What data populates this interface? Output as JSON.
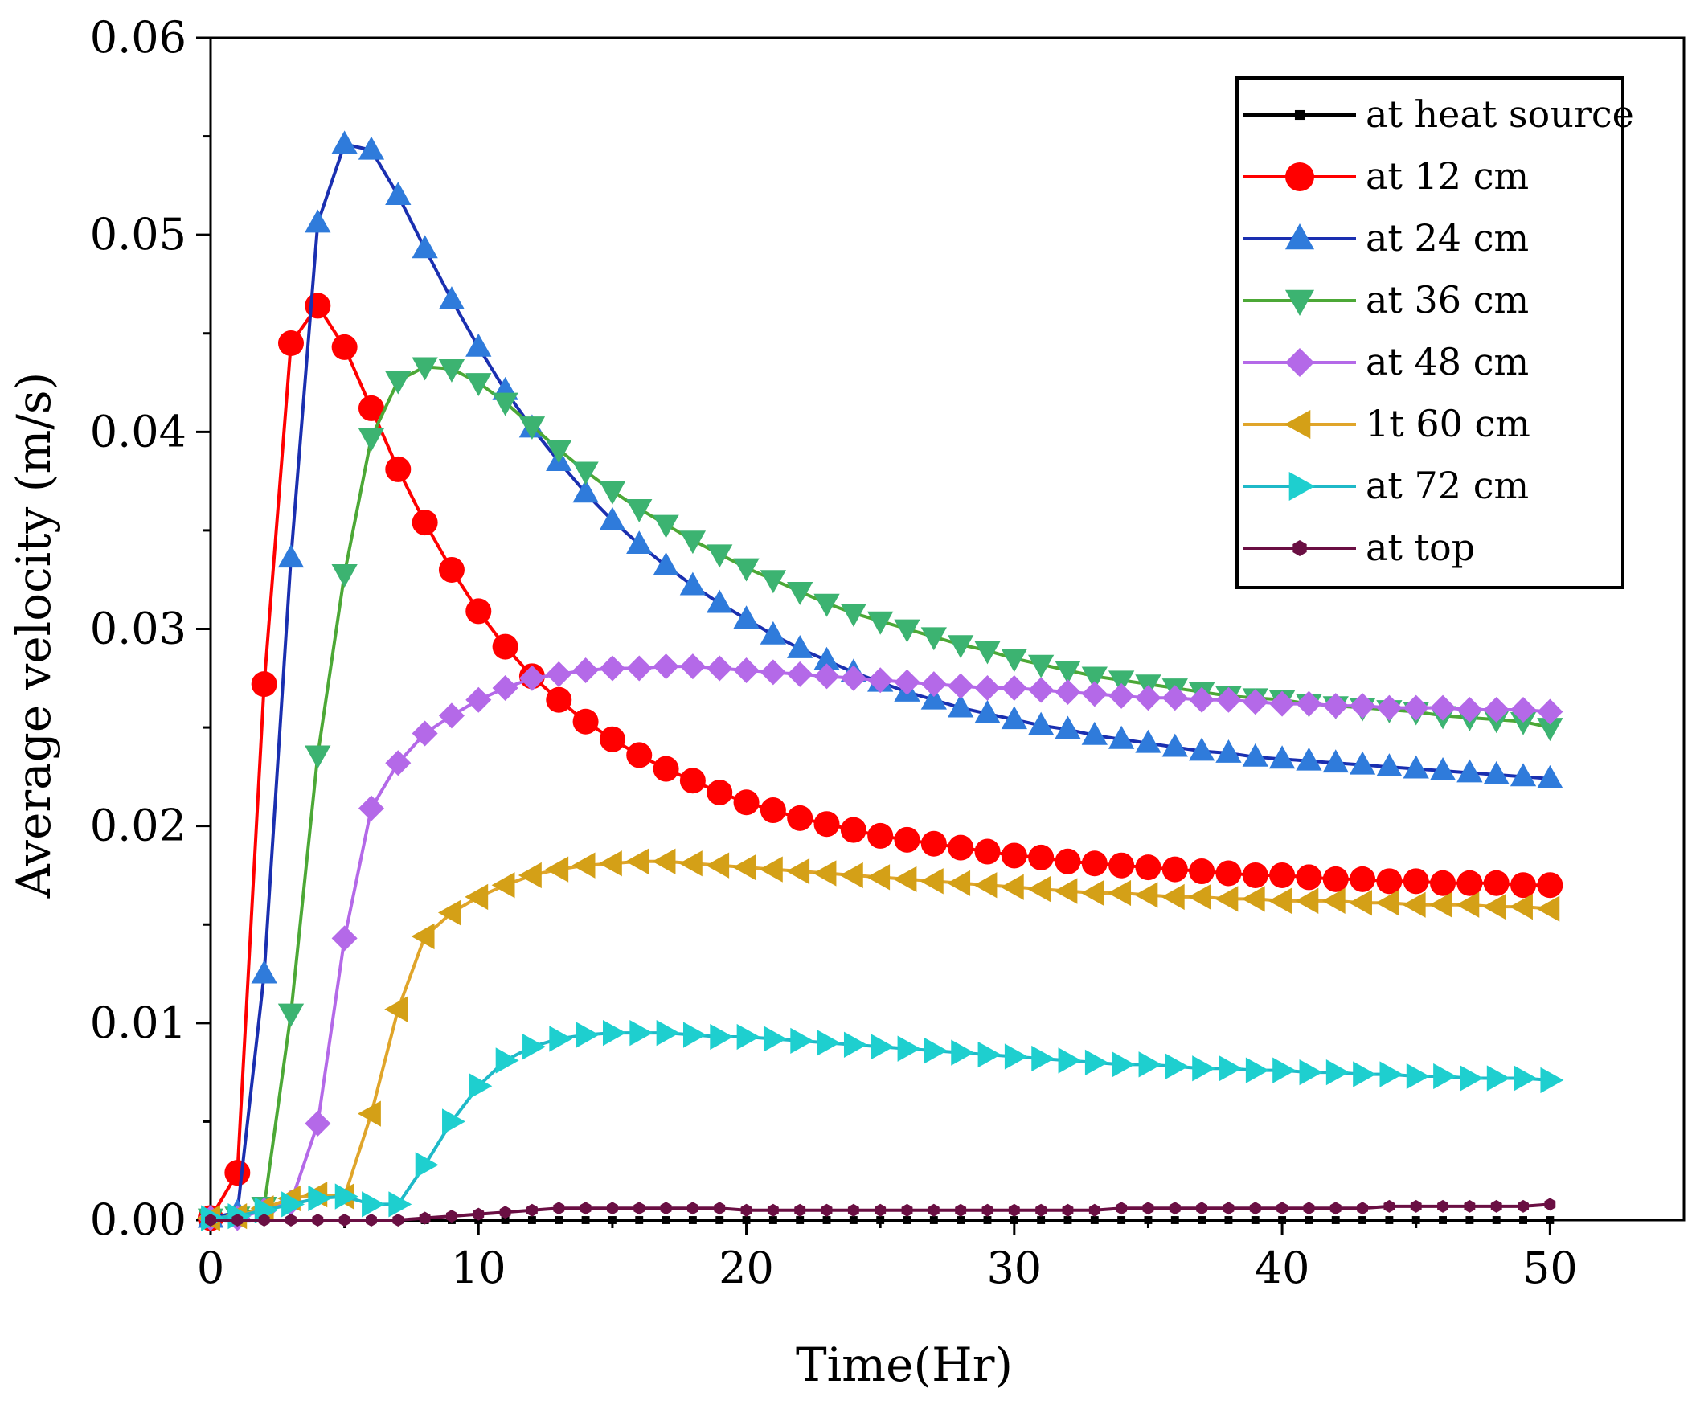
{
  "chart_data": {
    "type": "line",
    "title": "",
    "xlabel": "Time(Hr)",
    "ylabel": "Average velocity (m/s)",
    "xlim": [
      0,
      55
    ],
    "ylim": [
      0,
      0.06
    ],
    "x_ticks": [
      0,
      10,
      20,
      30,
      40,
      50
    ],
    "x_tick_labels": [
      "0",
      "10",
      "20",
      "30",
      "40",
      "50"
    ],
    "y_ticks": [
      0,
      0.01,
      0.02,
      0.03,
      0.04,
      0.05,
      0.06
    ],
    "y_tick_labels": [
      "0.00",
      "0.01",
      "0.02",
      "0.03",
      "0.04",
      "0.05",
      "0.06"
    ],
    "legend_position": "top-right",
    "x": [
      0,
      1,
      2,
      3,
      4,
      5,
      6,
      7,
      8,
      9,
      10,
      11,
      12,
      13,
      14,
      15,
      16,
      17,
      18,
      19,
      20,
      21,
      22,
      23,
      24,
      25,
      26,
      27,
      28,
      29,
      30,
      31,
      32,
      33,
      34,
      35,
      36,
      37,
      38,
      39,
      40,
      41,
      42,
      43,
      44,
      45,
      46,
      47,
      48,
      49,
      50
    ],
    "series": [
      {
        "name": "at heat source",
        "color": "#000000",
        "marker": "square",
        "values": [
          0.0,
          0.0,
          0.0,
          0.0,
          0.0,
          0.0,
          0.0,
          0.0,
          0.0,
          0.0,
          0.0,
          0.0,
          0.0,
          0.0,
          0.0,
          0.0,
          0.0,
          0.0,
          0.0,
          0.0,
          0.0,
          0.0,
          0.0,
          0.0,
          0.0,
          0.0,
          0.0,
          0.0,
          0.0,
          0.0,
          0.0,
          0.0,
          0.0,
          0.0,
          0.0,
          0.0,
          0.0,
          0.0,
          0.0,
          0.0,
          0.0,
          0.0,
          0.0,
          0.0,
          0.0,
          0.0,
          0.0,
          0.0,
          0.0,
          0.0,
          0.0
        ]
      },
      {
        "name": "at 12 cm",
        "color": "#FF0000",
        "marker": "circle",
        "values": [
          0.0001,
          0.0024,
          0.0272,
          0.0445,
          0.0464,
          0.0443,
          0.0412,
          0.0381,
          0.0354,
          0.033,
          0.0309,
          0.0291,
          0.0276,
          0.0264,
          0.0253,
          0.0244,
          0.0236,
          0.0229,
          0.0223,
          0.0217,
          0.0212,
          0.0208,
          0.0204,
          0.0201,
          0.0198,
          0.0195,
          0.0193,
          0.0191,
          0.0189,
          0.0187,
          0.0185,
          0.0184,
          0.0182,
          0.0181,
          0.018,
          0.0179,
          0.0178,
          0.0177,
          0.0176,
          0.0175,
          0.0175,
          0.0174,
          0.0173,
          0.0173,
          0.0172,
          0.0172,
          0.0171,
          0.0171,
          0.0171,
          0.017,
          0.017
        ]
      },
      {
        "name": "at 24 cm",
        "color": "#2F7BDB",
        "line_color": "#1A2FB0",
        "marker": "triangle-up",
        "values": [
          0.0001,
          0.0004,
          0.0125,
          0.0336,
          0.0506,
          0.0546,
          0.0543,
          0.052,
          0.0493,
          0.0467,
          0.0443,
          0.0421,
          0.0402,
          0.0385,
          0.0369,
          0.0355,
          0.0343,
          0.0332,
          0.0322,
          0.0313,
          0.0305,
          0.0297,
          0.029,
          0.0284,
          0.0278,
          0.0273,
          0.0268,
          0.0264,
          0.026,
          0.0257,
          0.0254,
          0.0251,
          0.0249,
          0.0246,
          0.0244,
          0.0242,
          0.024,
          0.0238,
          0.0237,
          0.0235,
          0.0234,
          0.0233,
          0.0232,
          0.0231,
          0.023,
          0.0229,
          0.0228,
          0.0227,
          0.0226,
          0.0225,
          0.0224
        ]
      },
      {
        "name": "at 36 cm",
        "color": "#3CB371",
        "line_color": "#4CA836",
        "marker": "triangle-down",
        "values": [
          0.0001,
          0.0002,
          0.0007,
          0.0105,
          0.0236,
          0.0328,
          0.0397,
          0.0426,
          0.0433,
          0.0432,
          0.0425,
          0.0415,
          0.0403,
          0.0391,
          0.038,
          0.037,
          0.0361,
          0.0353,
          0.0345,
          0.0338,
          0.0331,
          0.0325,
          0.0319,
          0.0313,
          0.0308,
          0.0304,
          0.03,
          0.0296,
          0.0292,
          0.0289,
          0.0285,
          0.0282,
          0.0279,
          0.0276,
          0.0274,
          0.0272,
          0.027,
          0.0268,
          0.0266,
          0.0265,
          0.0264,
          0.0262,
          0.0261,
          0.026,
          0.0259,
          0.0258,
          0.0256,
          0.0255,
          0.0254,
          0.0253,
          0.025
        ]
      },
      {
        "name": "at 48 cm",
        "color": "#B469E8",
        "marker": "diamond",
        "values": [
          0.0001,
          0.0001,
          0.0005,
          0.0009,
          0.0049,
          0.0143,
          0.0209,
          0.0232,
          0.0247,
          0.0256,
          0.0264,
          0.027,
          0.0275,
          0.0277,
          0.0279,
          0.028,
          0.028,
          0.0281,
          0.0281,
          0.028,
          0.0279,
          0.0278,
          0.0277,
          0.0276,
          0.0275,
          0.0274,
          0.0273,
          0.0272,
          0.0271,
          0.027,
          0.027,
          0.0269,
          0.0268,
          0.0267,
          0.0266,
          0.0265,
          0.0265,
          0.0264,
          0.0264,
          0.0263,
          0.0262,
          0.0262,
          0.0261,
          0.0261,
          0.026,
          0.026,
          0.026,
          0.0259,
          0.0259,
          0.0259,
          0.0258
        ]
      },
      {
        "name": "1t 60 cm",
        "color": "#D4A017",
        "line_color": "#E0A52A",
        "marker": "triangle-left",
        "values": [
          0.0001,
          0.0002,
          0.0006,
          0.0011,
          0.0013,
          0.0012,
          0.0054,
          0.0107,
          0.0144,
          0.0156,
          0.0164,
          0.017,
          0.0175,
          0.0178,
          0.018,
          0.0181,
          0.0182,
          0.0182,
          0.0181,
          0.018,
          0.0179,
          0.0178,
          0.0177,
          0.0176,
          0.0175,
          0.0174,
          0.0173,
          0.0172,
          0.0171,
          0.017,
          0.0169,
          0.0168,
          0.0167,
          0.0166,
          0.0166,
          0.0165,
          0.0164,
          0.0164,
          0.0163,
          0.0163,
          0.0162,
          0.0162,
          0.0162,
          0.0161,
          0.0161,
          0.016,
          0.016,
          0.016,
          0.0159,
          0.0159,
          0.0158
        ]
      },
      {
        "name": "at 72 cm",
        "color": "#1ECFCF",
        "line_color": "#1FB9C8",
        "marker": "triangle-right",
        "values": [
          0.0001,
          0.0002,
          0.0005,
          0.0008,
          0.0011,
          0.0012,
          0.0008,
          0.0008,
          0.0028,
          0.005,
          0.0068,
          0.0081,
          0.0088,
          0.0092,
          0.0094,
          0.0095,
          0.0095,
          0.0095,
          0.0094,
          0.0093,
          0.0093,
          0.0092,
          0.0091,
          0.009,
          0.0089,
          0.0088,
          0.0087,
          0.0086,
          0.0085,
          0.0084,
          0.0083,
          0.0082,
          0.0081,
          0.008,
          0.0079,
          0.0079,
          0.0078,
          0.0077,
          0.0077,
          0.0076,
          0.0076,
          0.0075,
          0.0075,
          0.0074,
          0.0074,
          0.0073,
          0.0073,
          0.0072,
          0.0072,
          0.0072,
          0.0071
        ]
      },
      {
        "name": "at top",
        "color": "#6A0F43",
        "marker": "hexagon",
        "values": [
          0.0,
          0.0,
          0.0,
          0.0,
          0.0,
          0.0,
          0.0,
          0.0,
          0.0001,
          0.0002,
          0.0003,
          0.0004,
          0.0005,
          0.0006,
          0.0006,
          0.0006,
          0.0006,
          0.0006,
          0.0006,
          0.0006,
          0.0005,
          0.0005,
          0.0005,
          0.0005,
          0.0005,
          0.0005,
          0.0005,
          0.0005,
          0.0005,
          0.0005,
          0.0005,
          0.0005,
          0.0005,
          0.0005,
          0.0006,
          0.0006,
          0.0006,
          0.0006,
          0.0006,
          0.0006,
          0.0006,
          0.0006,
          0.0006,
          0.0006,
          0.0007,
          0.0007,
          0.0007,
          0.0007,
          0.0007,
          0.0007,
          0.0008
        ]
      }
    ]
  }
}
